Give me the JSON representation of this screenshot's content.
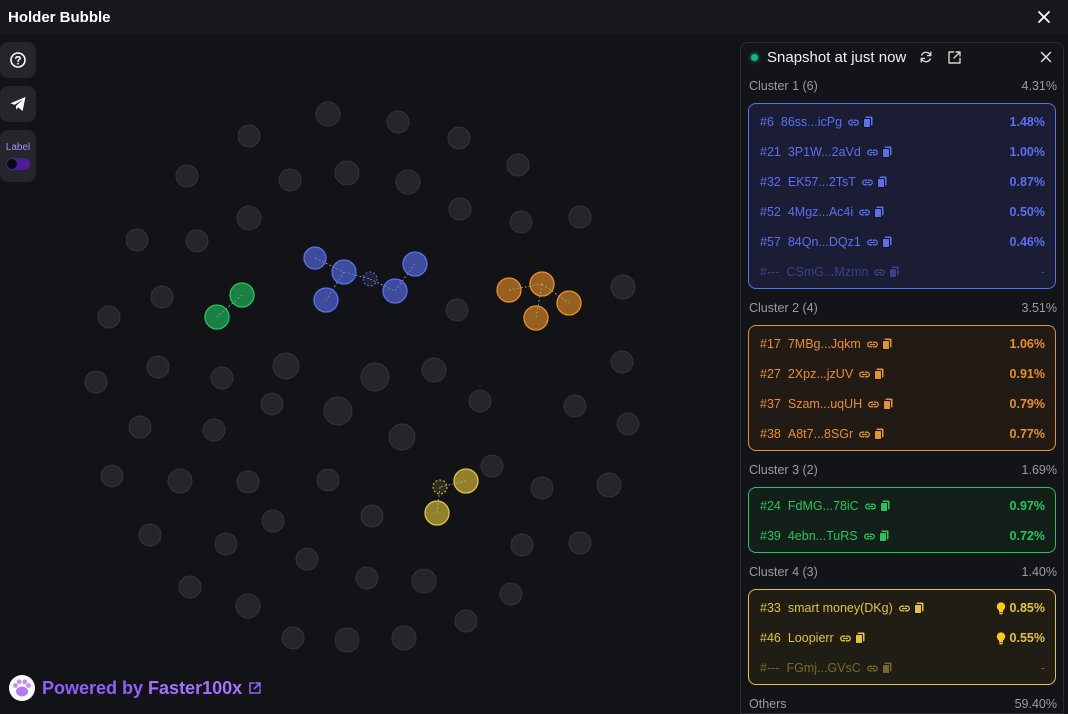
{
  "window": {
    "title": "Holder Bubble"
  },
  "toolbar": {
    "label_text": "Label"
  },
  "footer": {
    "powered_by": "Powered by",
    "brand": "Faster100x"
  },
  "panel": {
    "snapshot_text": "Snapshot at just now",
    "clusters": [
      {
        "name": "Cluster 1 (6)",
        "percent": "4.31%",
        "color": "#5b6ff0",
        "rows": [
          {
            "rank": "#6",
            "address": "86ss...icPg",
            "percent": "1.48%",
            "flag": "",
            "dim": false
          },
          {
            "rank": "#21",
            "address": "3P1W...2aVd",
            "percent": "1.00%",
            "flag": "",
            "dim": false
          },
          {
            "rank": "#32",
            "address": "EK57...2TsT",
            "percent": "0.87%",
            "flag": "",
            "dim": false
          },
          {
            "rank": "#52",
            "address": "4Mgz...Ac4i",
            "percent": "0.50%",
            "flag": "",
            "dim": false
          },
          {
            "rank": "#57",
            "address": "84Qn...DQz1",
            "percent": "0.46%",
            "flag": "",
            "dim": false
          },
          {
            "rank": "#---",
            "address": "CSmG...Mzmn",
            "percent": "-",
            "flag": "",
            "dim": true
          }
        ]
      },
      {
        "name": "Cluster 2 (4)",
        "percent": "3.51%",
        "color": "#e8902a",
        "rows": [
          {
            "rank": "#17",
            "address": "7MBg...Jqkm",
            "percent": "1.06%",
            "flag": "",
            "dim": false
          },
          {
            "rank": "#27",
            "address": "2Xpz...jzUV",
            "percent": "0.91%",
            "flag": "",
            "dim": false
          },
          {
            "rank": "#37",
            "address": "Szam...uqUH",
            "percent": "0.79%",
            "flag": "",
            "dim": false
          },
          {
            "rank": "#38",
            "address": "A8t7...8SGr",
            "percent": "0.77%",
            "flag": "",
            "dim": false
          }
        ]
      },
      {
        "name": "Cluster 3 (2)",
        "percent": "1.69%",
        "color": "#22c55e",
        "rows": [
          {
            "rank": "#24",
            "address": "FdMG...78iC",
            "percent": "0.97%",
            "flag": "",
            "dim": false
          },
          {
            "rank": "#39",
            "address": "4ebn...TuRS",
            "percent": "0.72%",
            "flag": "",
            "dim": false
          }
        ]
      },
      {
        "name": "Cluster 4 (3)",
        "percent": "1.40%",
        "color": "#e2c33c",
        "rows": [
          {
            "rank": "#33",
            "address": "smart money(DKg)",
            "percent": "0.85%",
            "flag": "bulb-icon",
            "dim": false
          },
          {
            "rank": "#46",
            "address": "Loopierr",
            "percent": "0.55%",
            "flag": "bulb-icon",
            "dim": false
          },
          {
            "rank": "#---",
            "address": "FGmj...GVsC",
            "percent": "-",
            "flag": "",
            "dim": true
          }
        ]
      }
    ],
    "others": {
      "name": "Others",
      "percent": "59.40%"
    }
  },
  "colors": {
    "bubble_fill": "#25262a",
    "bubble_stroke": "#33343a",
    "cluster1": "#5b6ff0",
    "cluster2": "#e8902a",
    "cluster3": "#22c55e",
    "cluster4": "#e2c33c",
    "brand": "#9061f9"
  }
}
